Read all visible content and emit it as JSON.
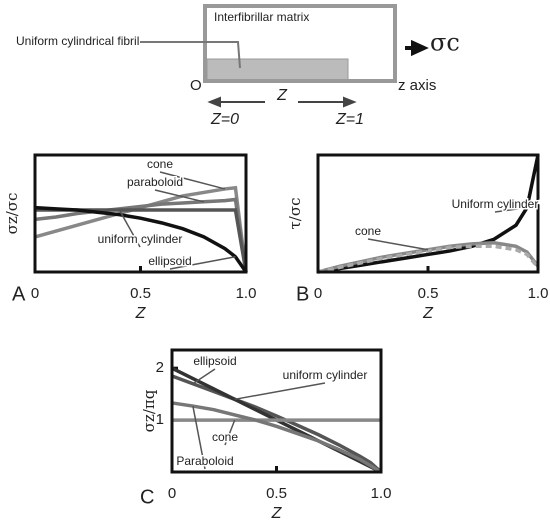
{
  "diagram": {
    "matrix_label": "Interfibrillar matrix",
    "fibril_label": "Uniform cylindrical fibril",
    "origin": "O",
    "axis_label": "z axis",
    "stress": "σc",
    "span_label": "Z",
    "start_label": "Z=0",
    "end_label": "Z=1"
  },
  "chart_data": [
    {
      "type": "line",
      "panel_label": "A",
      "xlabel": "Z",
      "ylabel": "σz/σc",
      "x": [
        0,
        0.1,
        0.2,
        0.3,
        0.4,
        0.5,
        0.6,
        0.7,
        0.8,
        0.9,
        0.95,
        1.0
      ],
      "xlim": [
        0,
        1
      ],
      "xticks": [
        0,
        0.5,
        {
          "value": 1,
          "label": "1.0"
        }
      ],
      "ylim": [
        0,
        1
      ],
      "series": [
        {
          "name": "cone",
          "color": "#888888",
          "values": [
            0.3,
            0.35,
            0.4,
            0.45,
            0.5,
            0.55,
            0.6,
            0.65,
            0.68,
            0.71,
            0.72,
            0
          ]
        },
        {
          "name": "paraboloid",
          "color": "#777777",
          "values": [
            0.45,
            0.47,
            0.5,
            0.52,
            0.54,
            0.56,
            0.58,
            0.59,
            0.6,
            0.61,
            0.62,
            0
          ]
        },
        {
          "name": "uniform cylinder",
          "color": "#555555",
          "values": [
            0.53,
            0.53,
            0.53,
            0.53,
            0.53,
            0.53,
            0.53,
            0.53,
            0.53,
            0.53,
            0.53,
            0
          ]
        },
        {
          "name": "ellipsoid",
          "color": "#111111",
          "values": [
            0.55,
            0.54,
            0.53,
            0.51,
            0.49,
            0.46,
            0.42,
            0.37,
            0.3,
            0.2,
            0.13,
            0
          ]
        }
      ]
    },
    {
      "type": "line",
      "panel_label": "B",
      "xlabel": "Z",
      "ylabel": "τ/σc",
      "x": [
        0,
        0.1,
        0.2,
        0.3,
        0.4,
        0.5,
        0.6,
        0.7,
        0.8,
        0.9,
        0.95,
        1.0
      ],
      "xlim": [
        0,
        1
      ],
      "xticks": [
        0,
        0.5,
        {
          "value": 1,
          "label": "1.0"
        }
      ],
      "ylim": [
        0,
        1
      ],
      "series": [
        {
          "name": "Uniform cylinder",
          "color": "#111111",
          "values": [
            0,
            0.03,
            0.06,
            0.09,
            0.12,
            0.15,
            0.18,
            0.22,
            0.28,
            0.4,
            0.55,
            1.0
          ]
        },
        {
          "name": "cone",
          "color": "#888888",
          "values": [
            0,
            0.05,
            0.09,
            0.13,
            0.16,
            0.19,
            0.22,
            0.24,
            0.25,
            0.22,
            0.17,
            0.05
          ]
        },
        {
          "color": "#aaaaaa",
          "dashed": true,
          "values": [
            0,
            0.04,
            0.08,
            0.12,
            0.15,
            0.18,
            0.21,
            0.22,
            0.22,
            0.19,
            0.15,
            0.04
          ]
        }
      ]
    },
    {
      "type": "line",
      "panel_label": "C",
      "xlabel": "Z",
      "ylabel": "σz/πq",
      "x": [
        0,
        0.1,
        0.2,
        0.3,
        0.4,
        0.5,
        0.6,
        0.7,
        0.8,
        0.9,
        0.95,
        1.0
      ],
      "xlim": [
        0,
        1
      ],
      "xticks": [
        0,
        0.5,
        {
          "value": 1,
          "label": "1.0"
        }
      ],
      "ylim": [
        0,
        2.35
      ],
      "yticks": [
        1,
        2
      ],
      "series": [
        {
          "name": "ellipsoid",
          "color": "#555555",
          "values": [
            1.85,
            1.7,
            1.55,
            1.4,
            1.25,
            1.08,
            0.9,
            0.72,
            0.52,
            0.3,
            0.18,
            0
          ]
        },
        {
          "name": "uniform cylinder",
          "color": "#333333",
          "values": [
            2,
            1.8,
            1.6,
            1.4,
            1.2,
            1,
            0.8,
            0.6,
            0.4,
            0.2,
            0.1,
            0
          ]
        },
        {
          "name": "cone",
          "color": "#888888",
          "values": [
            1,
            1,
            1,
            1,
            1,
            1,
            1,
            1,
            1,
            1,
            1,
            1
          ]
        },
        {
          "name": "Paraboloid",
          "color": "#777777",
          "values": [
            1.33,
            1.27,
            1.2,
            1.1,
            1,
            0.88,
            0.74,
            0.6,
            0.43,
            0.24,
            0.12,
            0
          ]
        }
      ]
    }
  ]
}
